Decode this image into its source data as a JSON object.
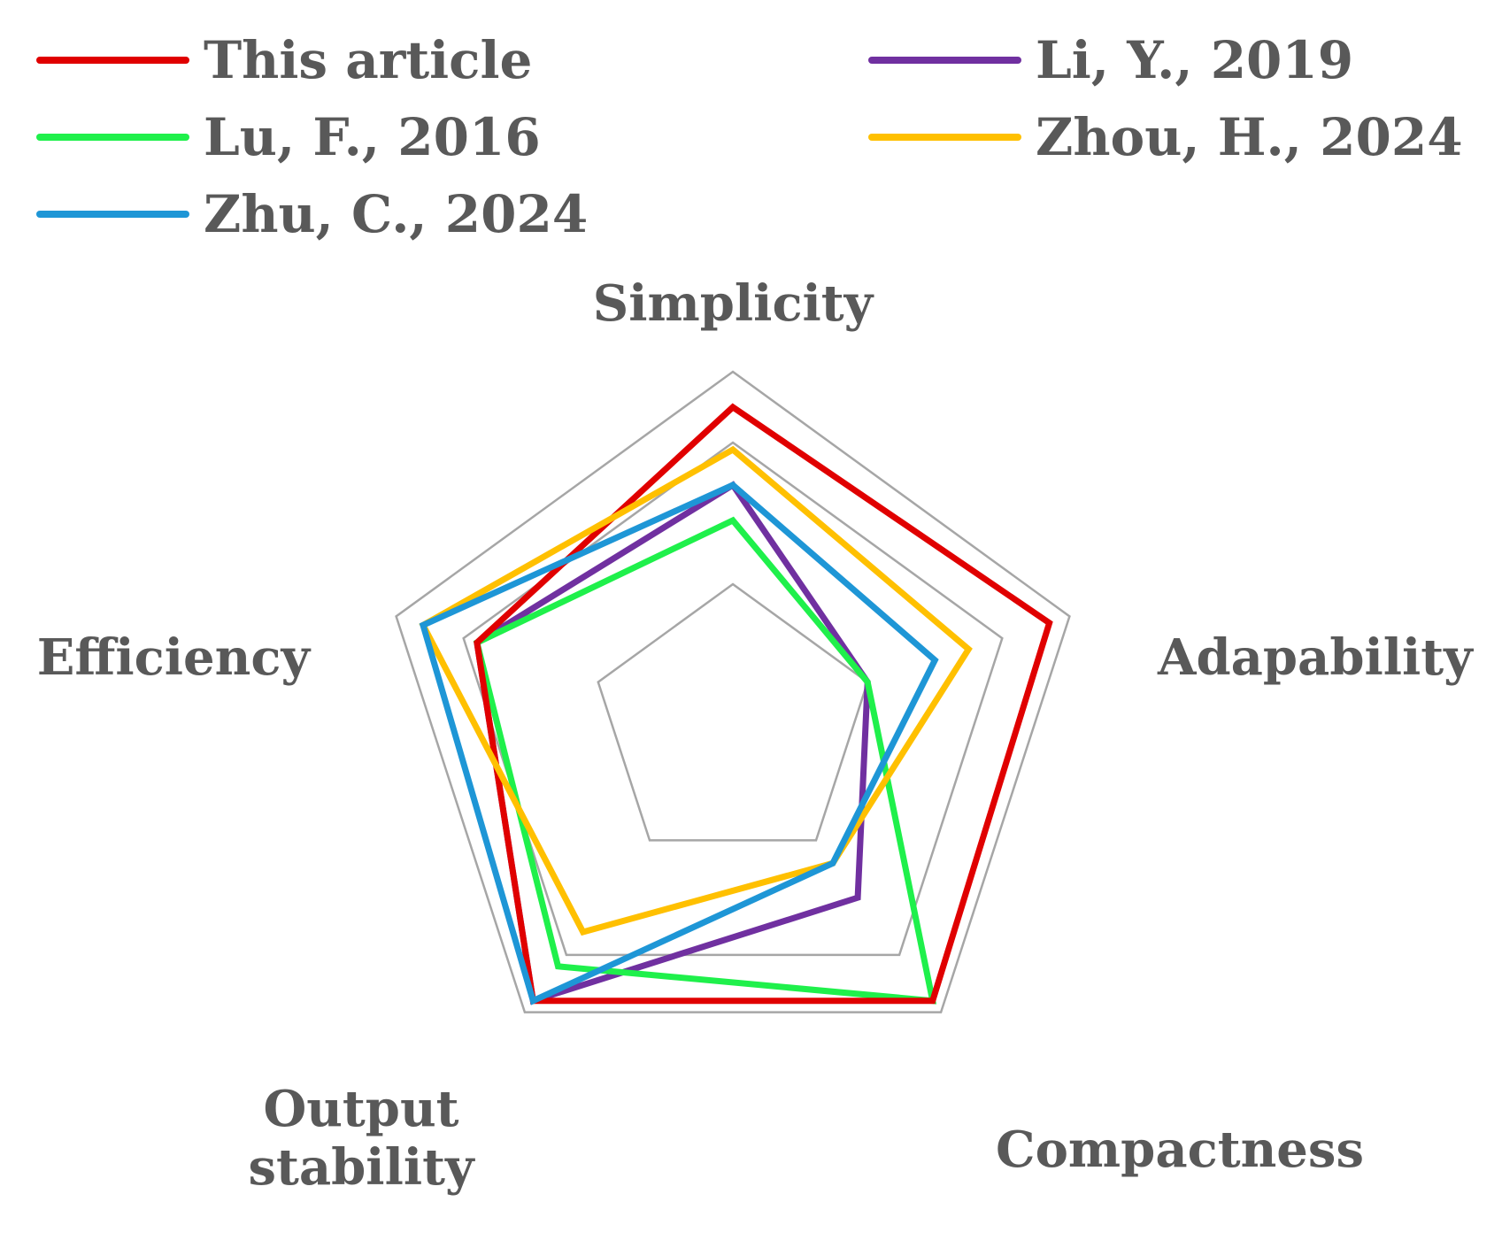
{
  "chart_data": {
    "type": "radar",
    "axes": [
      "Simplicity",
      "Adapability",
      "Compactness",
      "Output stability",
      "Efficiency"
    ],
    "axis_label_lines": [
      [
        "Simplicity"
      ],
      [
        "Adapability"
      ],
      [
        "Compactness"
      ],
      [
        "Output",
        "stability"
      ],
      [
        "Efficiency"
      ]
    ],
    "rlim": [
      0,
      5
    ],
    "grid_levels": [
      2,
      4,
      5
    ],
    "series": [
      {
        "name": "This article",
        "color": "#e00000",
        "values": [
          4.5,
          4.7,
          4.8,
          4.8,
          3.8
        ]
      },
      {
        "name": "Lu, F., 2016",
        "color": "#1ff04b",
        "values": [
          2.9,
          2.0,
          4.8,
          4.2,
          3.8
        ]
      },
      {
        "name": "Zhu, C., 2024",
        "color": "#1e96d6",
        "values": [
          3.4,
          3.0,
          2.4,
          4.8,
          4.6
        ]
      },
      {
        "name": "Li, Y., 2019",
        "color": "#7030a0",
        "values": [
          3.4,
          2.0,
          3.0,
          4.8,
          3.8
        ]
      },
      {
        "name": "Zhou, H., 2024",
        "color": "#ffc000",
        "values": [
          3.9,
          3.5,
          2.4,
          3.6,
          4.6
        ]
      }
    ],
    "draw_order": [
      3,
      1,
      0,
      4,
      2
    ],
    "legend": {
      "placement": "top",
      "columns": 2
    }
  }
}
